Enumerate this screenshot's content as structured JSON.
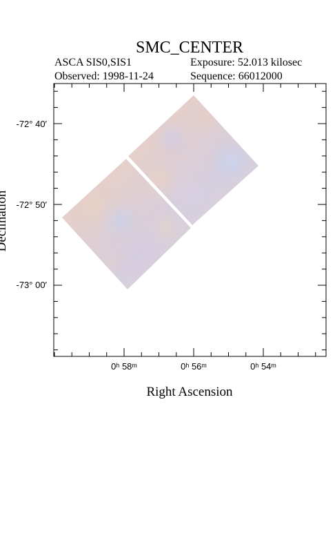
{
  "header": {
    "title": "SMC_CENTER",
    "instrument": "ASCA SIS0,SIS1",
    "exposure": "Exposure: 52.013 kilosec",
    "observed": "Observed: 1998-11-24",
    "sequence": "Sequence: 66012000"
  },
  "axes": {
    "x_label": "Right Ascension",
    "y_label": "Declination",
    "x_ticks": [
      "0ʰ 58ᵐ",
      "0ʰ 56ᵐ",
      "0ʰ 54ᵐ"
    ],
    "y_ticks": [
      "-72° 40′",
      "-72° 50′",
      "-73° 00′"
    ]
  }
}
